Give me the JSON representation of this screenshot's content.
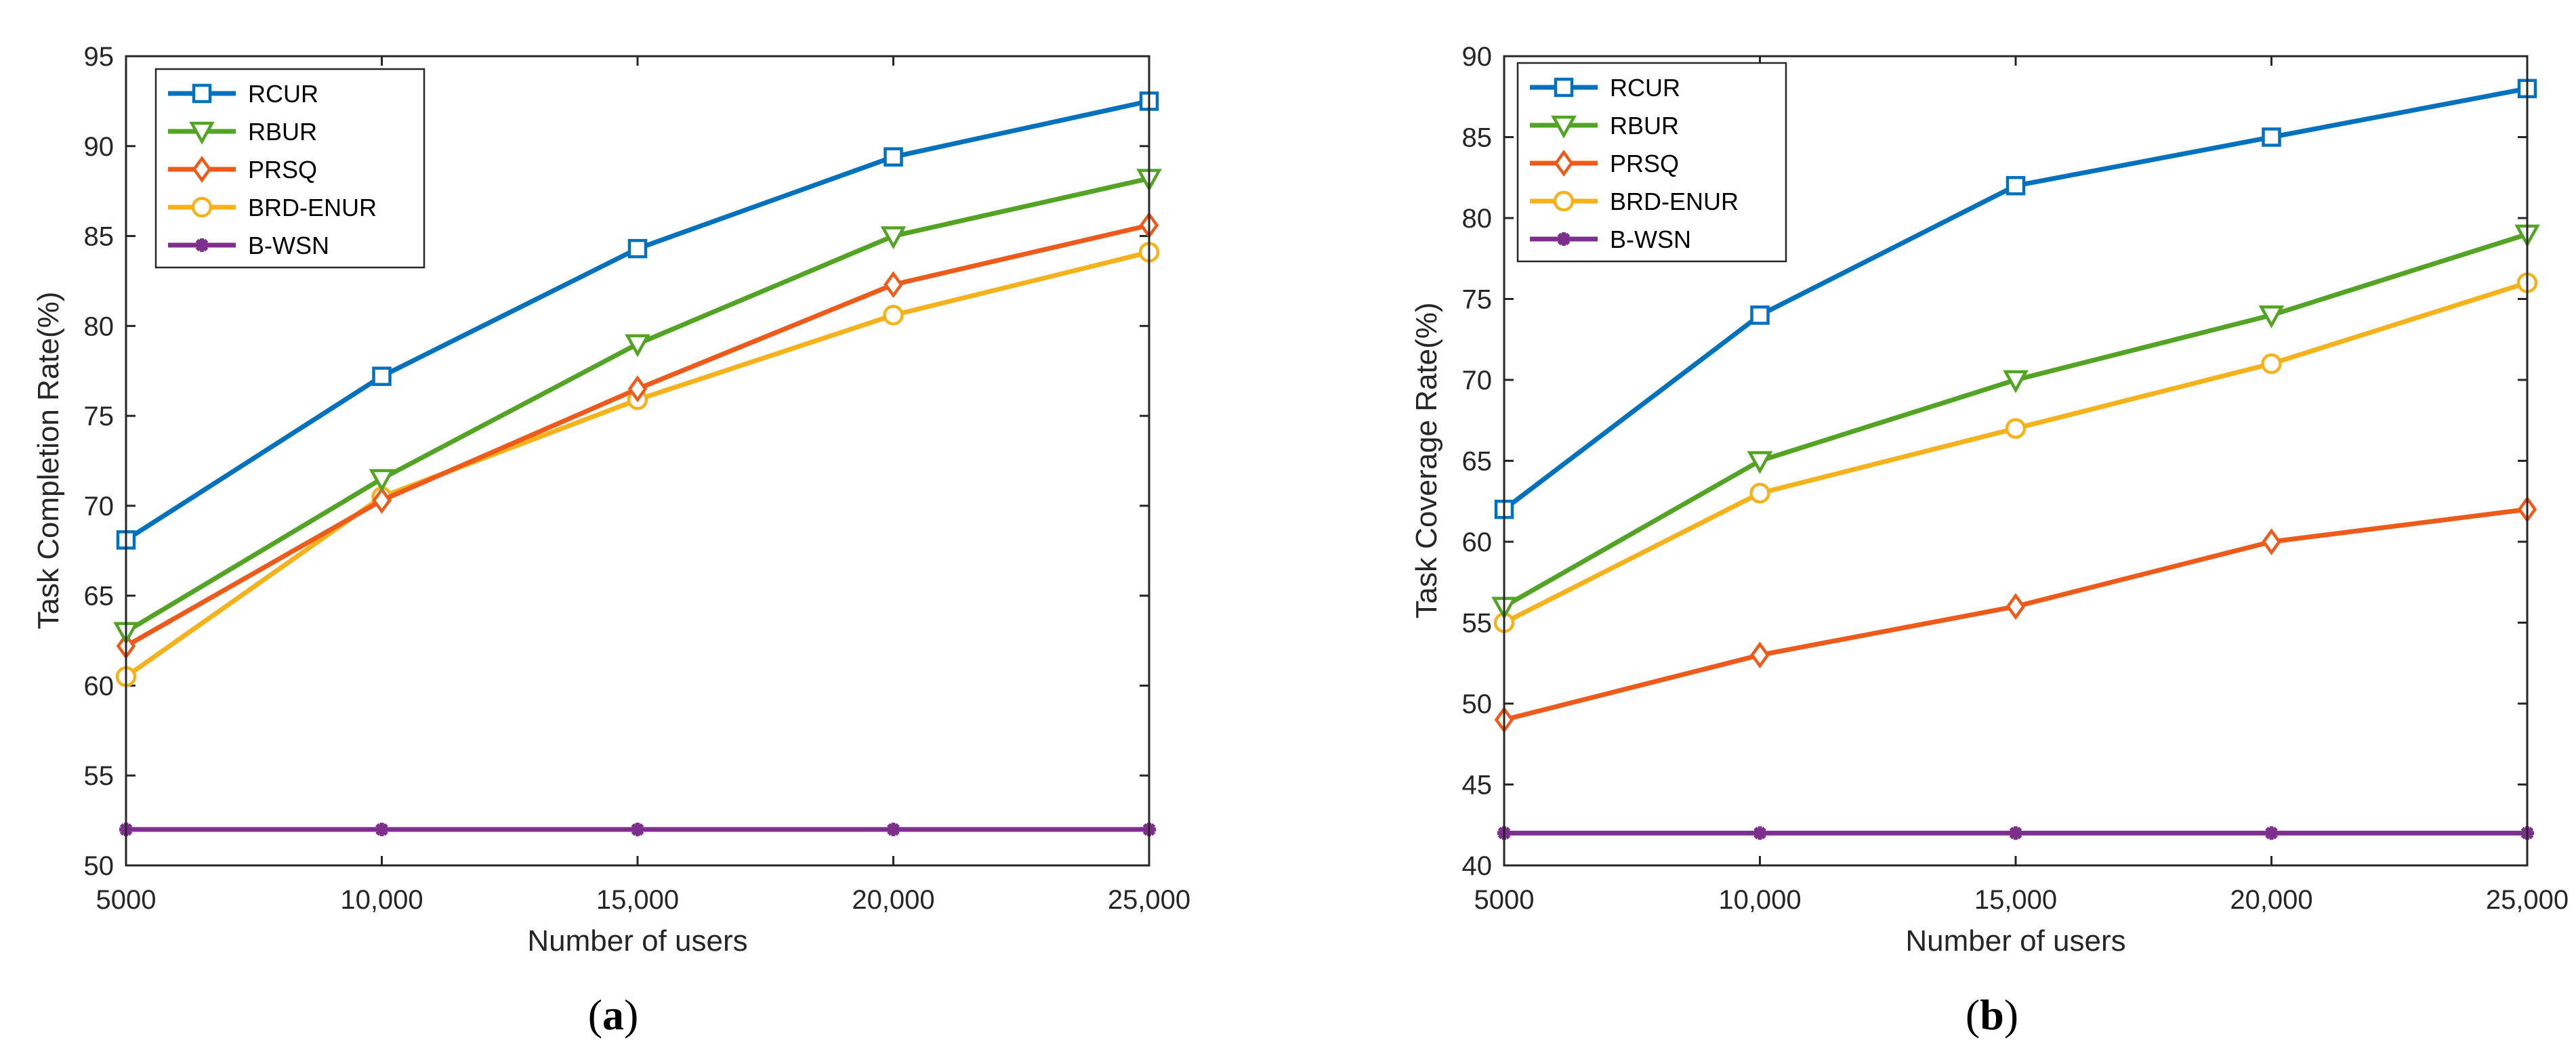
{
  "colors": {
    "RCUR": "#0072BD",
    "RBUR": "#53A324",
    "PRSQ": "#EE5A1A",
    "BRD-ENUR": "#F5B21A",
    "B-WSN": "#7E2F8E",
    "axis": "#262626"
  },
  "chart_data": [
    {
      "panel": "a",
      "type": "line",
      "categories": [
        "5000",
        "10,000",
        "15,000",
        "20,000",
        "25,000"
      ],
      "x": [
        5000,
        10000,
        15000,
        20000,
        25000
      ],
      "xlabel": "Number of users",
      "ylabel": "Task Completion Rate(%)",
      "ylim": [
        50,
        95
      ],
      "yticks": [
        50,
        55,
        60,
        65,
        70,
        75,
        80,
        85,
        90,
        95
      ],
      "legend_position": "top-left",
      "series": [
        {
          "name": "RCUR",
          "marker": "square",
          "values": [
            68.1,
            77.2,
            84.3,
            89.4,
            92.5
          ]
        },
        {
          "name": "RBUR",
          "marker": "triangle-down",
          "values": [
            63.0,
            71.5,
            79.0,
            85.0,
            88.2
          ]
        },
        {
          "name": "PRSQ",
          "marker": "diamond",
          "values": [
            62.2,
            70.3,
            76.5,
            82.3,
            85.6
          ]
        },
        {
          "name": "BRD-ENUR",
          "marker": "circle",
          "values": [
            60.5,
            70.5,
            75.9,
            80.6,
            84.1
          ]
        },
        {
          "name": "B-WSN",
          "marker": "asterisk",
          "values": [
            52.0,
            52.0,
            52.0,
            52.0,
            52.0
          ]
        }
      ],
      "caption": {
        "open": "(",
        "letter": "a",
        "close": ")"
      }
    },
    {
      "panel": "b",
      "type": "line",
      "categories": [
        "5000",
        "10,000",
        "15,000",
        "20,000",
        "25,000"
      ],
      "x": [
        5000,
        10000,
        15000,
        20000,
        25000
      ],
      "xlabel": "Number of users",
      "ylabel": "Task Coverage Rate(%)",
      "ylim": [
        40,
        90
      ],
      "yticks": [
        40,
        45,
        50,
        55,
        60,
        65,
        70,
        75,
        80,
        85,
        90
      ],
      "legend_position": "top-left",
      "series": [
        {
          "name": "RCUR",
          "marker": "square",
          "values": [
            62,
            74,
            82,
            85,
            88
          ]
        },
        {
          "name": "RBUR",
          "marker": "triangle-down",
          "values": [
            56,
            65,
            70,
            74,
            79
          ]
        },
        {
          "name": "PRSQ",
          "marker": "diamond",
          "values": [
            49,
            53,
            56,
            60,
            62
          ]
        },
        {
          "name": "BRD-ENUR",
          "marker": "circle",
          "values": [
            55,
            63,
            67,
            71,
            76
          ]
        },
        {
          "name": "B-WSN",
          "marker": "asterisk",
          "values": [
            42,
            42,
            42,
            42,
            42
          ]
        }
      ],
      "caption": {
        "open": "(",
        "letter": "b",
        "close": ")"
      }
    }
  ]
}
